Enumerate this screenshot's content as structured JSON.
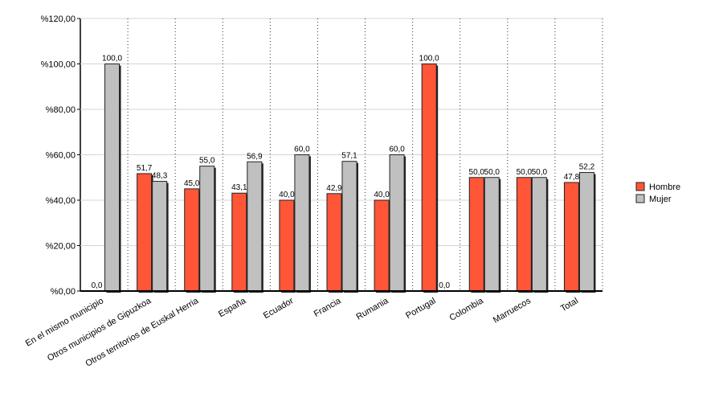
{
  "chart_data": {
    "type": "bar",
    "categories": [
      "En el mismo municipio",
      "Otros municipios de Gipuzkoa",
      "Otros territorios de Euskal Herria",
      "España",
      "Ecuador",
      "Francia",
      "Rumania",
      "Portugal",
      "Colombia",
      "Marruecos",
      "Total"
    ],
    "series": [
      {
        "name": "Hombre",
        "color": "#ff5638",
        "values": [
          0,
          51.7,
          45.0,
          43.1,
          40.0,
          42.9,
          40.0,
          100.0,
          50.0,
          50.0,
          47.8
        ],
        "value_labels": [
          "0,0",
          "51,7",
          "45,0",
          "43,1",
          "40,0",
          "42,9",
          "40,0",
          "100,0",
          "50,0",
          "50,0",
          "47,8"
        ]
      },
      {
        "name": "Mujer",
        "color": "#c0c0c0",
        "values": [
          100.0,
          48.3,
          55.0,
          56.9,
          60.0,
          57.1,
          60.0,
          0,
          50.0,
          50.0,
          52.2
        ],
        "value_labels": [
          "100,0",
          "48,3",
          "55,0",
          "56,9",
          "60,0",
          "57,1",
          "60,0",
          "0,0",
          "50,0",
          "50,0",
          "52,2"
        ]
      }
    ],
    "ylim": [
      0,
      120
    ],
    "yticks": [
      {
        "value": 0,
        "label": "%0,00"
      },
      {
        "value": 20,
        "label": "%20,00"
      },
      {
        "value": 40,
        "label": "%40,00"
      },
      {
        "value": 60,
        "label": "%60,00"
      },
      {
        "value": 80,
        "label": "%80,00"
      },
      {
        "value": 100,
        "label": "%100,00"
      },
      {
        "value": 120,
        "label": "%120,00"
      }
    ],
    "grid": true,
    "legend": "right"
  }
}
